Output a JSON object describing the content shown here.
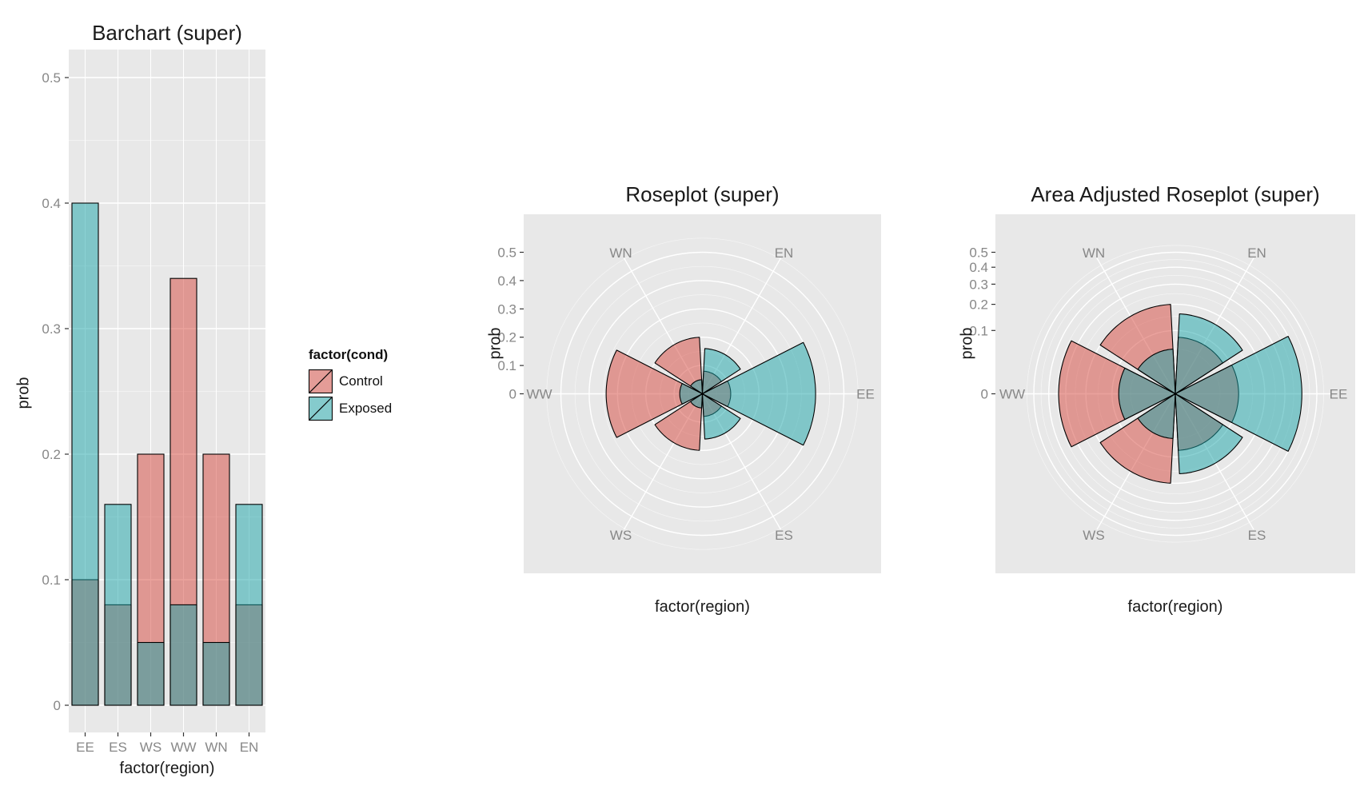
{
  "figure": {
    "background": "#FFFFFF",
    "panel_bg": "#E8E8E8",
    "grid_color": "#FFFFFF",
    "tick_label_color": "#878787",
    "text_color": "#1A1A1A",
    "outline_color": "#000000",
    "tick_mark_color": "#333333",
    "series_colors": {
      "Control": "#D5453C",
      "Exposed": "#17A3A8"
    },
    "fill_alpha": 0.5
  },
  "legend": {
    "title": "factor(cond)",
    "items": [
      {
        "label": "Control",
        "fill": "#D5453C"
      },
      {
        "label": "Exposed",
        "fill": "#17A3A8"
      }
    ]
  },
  "chart_data": [
    {
      "type": "bar",
      "title": "Barchart (super)",
      "xlabel": "factor(region)",
      "ylabel": "prob",
      "categories": [
        "EE",
        "ES",
        "WS",
        "WW",
        "WN",
        "EN"
      ],
      "series": [
        {
          "name": "Control",
          "values": [
            0.1,
            0.08,
            0.2,
            0.34,
            0.2,
            0.08
          ]
        },
        {
          "name": "Exposed",
          "values": [
            0.4,
            0.16,
            0.05,
            0.08,
            0.05,
            0.16
          ]
        }
      ],
      "y_ticks": [
        0,
        0.1,
        0.2,
        0.3,
        0.4,
        0.5
      ],
      "ylim": [
        0,
        0.5
      ],
      "bar_position": "identity-overlap",
      "grid": "on",
      "legend_position": "right"
    },
    {
      "type": "rose",
      "title": "Roseplot (super)",
      "xlabel": "factor(region)",
      "ylabel": "prob",
      "radius_scale": "linear",
      "categories": [
        "EE",
        "EN",
        "WN",
        "WW",
        "WS",
        "ES"
      ],
      "angles_deg": [
        0,
        60,
        120,
        180,
        240,
        300
      ],
      "sector_width_deg": 54,
      "series": [
        {
          "name": "Control",
          "values": [
            0.1,
            0.08,
            0.2,
            0.34,
            0.2,
            0.08
          ]
        },
        {
          "name": "Exposed",
          "values": [
            0.4,
            0.16,
            0.05,
            0.08,
            0.05,
            0.16
          ]
        }
      ],
      "r_ticks": [
        0,
        0.1,
        0.2,
        0.3,
        0.4,
        0.5
      ],
      "rlim": [
        0,
        0.5
      ],
      "grid": "on"
    },
    {
      "type": "rose",
      "title": "Area Adjusted Roseplot (super)",
      "xlabel": "factor(region)",
      "ylabel": "prob",
      "radius_scale": "sqrt",
      "categories": [
        "EE",
        "EN",
        "WN",
        "WW",
        "WS",
        "ES"
      ],
      "angles_deg": [
        0,
        60,
        120,
        180,
        240,
        300
      ],
      "sector_width_deg": 54,
      "series": [
        {
          "name": "Control",
          "values": [
            0.1,
            0.08,
            0.2,
            0.34,
            0.2,
            0.08
          ]
        },
        {
          "name": "Exposed",
          "values": [
            0.4,
            0.16,
            0.05,
            0.08,
            0.05,
            0.16
          ]
        }
      ],
      "r_ticks": [
        0,
        0.1,
        0.2,
        0.3,
        0.4,
        0.5
      ],
      "rlim": [
        0,
        0.5
      ],
      "grid": "on"
    }
  ]
}
